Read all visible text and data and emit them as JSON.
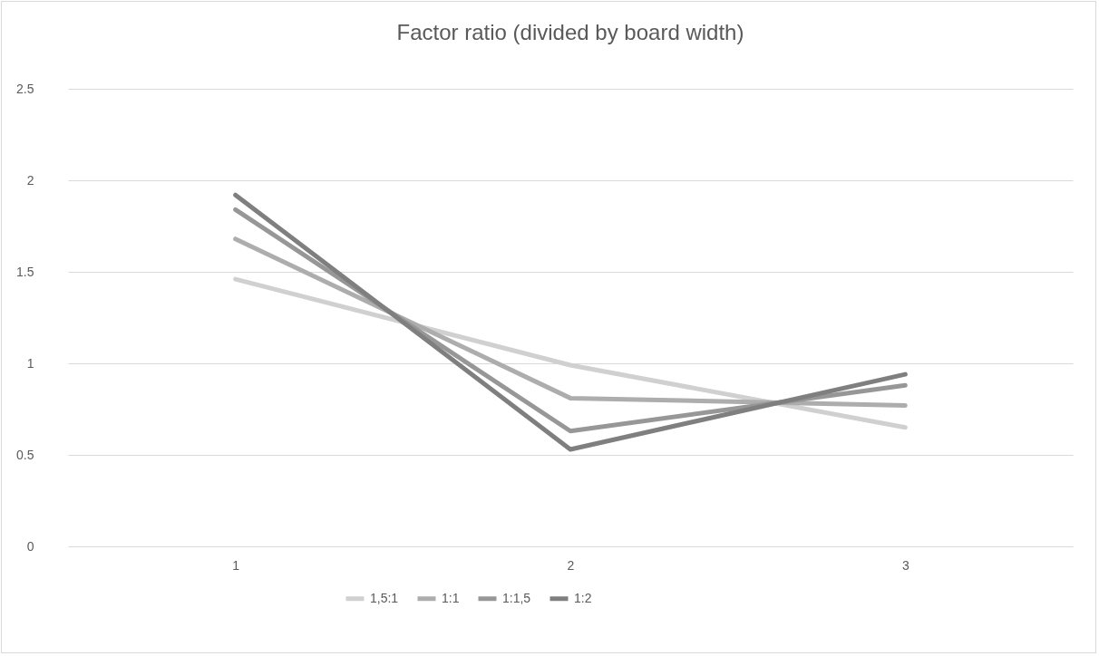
{
  "chart_data": {
    "type": "line",
    "title": "Factor ratio (divided by board width)",
    "categories": [
      "1",
      "2",
      "3"
    ],
    "series": [
      {
        "name": "1,5:1",
        "color": "#d0d0d0",
        "values": [
          1.46,
          0.99,
          0.65
        ]
      },
      {
        "name": "1:1",
        "color": "#adadad",
        "values": [
          1.68,
          0.81,
          0.77
        ]
      },
      {
        "name": "1:1,5",
        "color": "#979797",
        "values": [
          1.84,
          0.63,
          0.88
        ]
      },
      {
        "name": "1:2",
        "color": "#7f7f7f",
        "values": [
          1.92,
          0.53,
          0.94
        ]
      }
    ],
    "ylim": [
      0,
      2.5
    ],
    "yticks": [
      0,
      0.5,
      1,
      1.5,
      2,
      2.5
    ],
    "grid": "y",
    "legend": "bottom",
    "marker": "none",
    "line_style": "solid"
  }
}
